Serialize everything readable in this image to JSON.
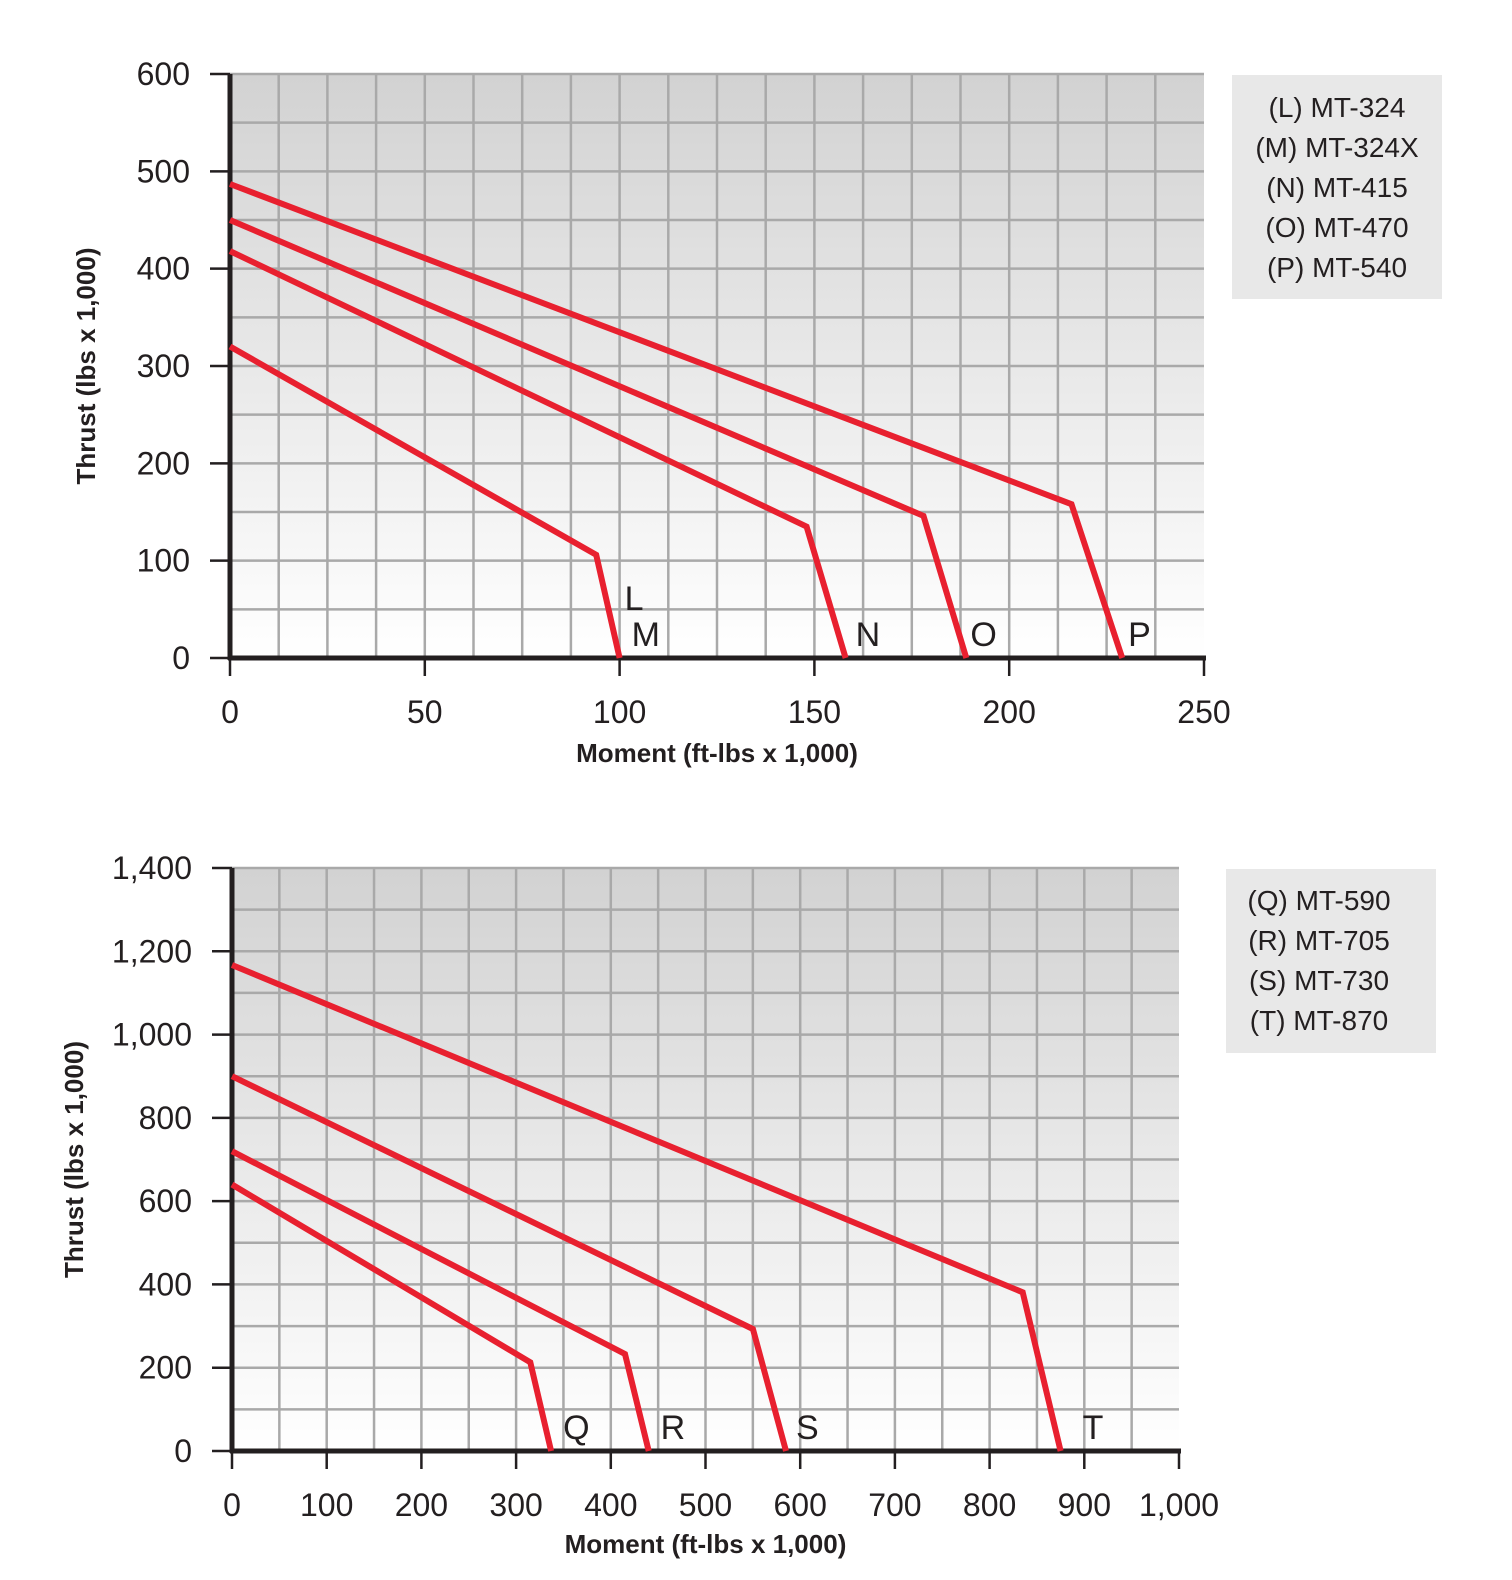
{
  "colors": {
    "line": "#e8202f",
    "axis": "#231f20",
    "grid": "#a9a9a9",
    "legend_bg": "#e8e8e8",
    "plot_top": "#d2d2d2",
    "plot_bottom": "#ffffff"
  },
  "chart_data": [
    {
      "type": "line",
      "xlabel": "Moment (ft-lbs x 1,000)",
      "ylabel": "Thrust (lbs x 1,000)",
      "xlim": [
        0,
        250
      ],
      "ylim": [
        0,
        600
      ],
      "x_ticks": [
        0,
        50,
        100,
        150,
        200,
        250
      ],
      "x_tick_labels": [
        "0",
        "50",
        "100",
        "150",
        "200",
        "250"
      ],
      "y_ticks": [
        0,
        100,
        200,
        300,
        400,
        500,
        600
      ],
      "y_tick_labels": [
        "0",
        "100",
        "200",
        "300",
        "400",
        "500",
        "600"
      ],
      "grid": true,
      "legend_position": "right",
      "legend": [
        "(L) MT-324",
        "(M) MT-324X",
        "(N) MT-415",
        "(O) MT-470",
        "(P) MT-540"
      ],
      "series": [
        {
          "name": "L M",
          "labels": [
            "L",
            "M"
          ],
          "points": [
            [
              0,
              320
            ],
            [
              94,
              106
            ],
            [
              100,
              0
            ]
          ]
        },
        {
          "name": "N",
          "labels": [
            "N"
          ],
          "points": [
            [
              0,
              418
            ],
            [
              148,
              135
            ],
            [
              158,
              0
            ]
          ]
        },
        {
          "name": "O",
          "labels": [
            "O"
          ],
          "points": [
            [
              0,
              450
            ],
            [
              178,
              146
            ],
            [
              189,
              0
            ]
          ]
        },
        {
          "name": "P",
          "labels": [
            "P"
          ],
          "points": [
            [
              0,
              487
            ],
            [
              216,
              158
            ],
            [
              229,
              0
            ]
          ]
        }
      ]
    },
    {
      "type": "line",
      "xlabel": "Moment (ft-lbs x 1,000)",
      "ylabel": "Thrust (lbs x 1,000)",
      "xlim": [
        0,
        1000
      ],
      "ylim": [
        0,
        1400
      ],
      "x_ticks": [
        0,
        100,
        200,
        300,
        400,
        500,
        600,
        700,
        800,
        900,
        1000
      ],
      "x_tick_labels": [
        "0",
        "100",
        "200",
        "300",
        "400",
        "500",
        "600",
        "700",
        "800",
        "900",
        "1,000"
      ],
      "y_ticks": [
        0,
        200,
        400,
        600,
        800,
        1000,
        1200,
        1400
      ],
      "y_tick_labels": [
        "0",
        "200",
        "400",
        "600",
        "800",
        "1,000",
        "1,200",
        "1,400"
      ],
      "grid": true,
      "legend_position": "right",
      "legend": [
        "(Q) MT-590",
        "(R) MT-705",
        "(S) MT-730",
        "(T) MT-870"
      ],
      "series": [
        {
          "name": "Q",
          "labels": [
            "Q"
          ],
          "points": [
            [
              0,
              640
            ],
            [
              315,
              213
            ],
            [
              337,
              0
            ]
          ]
        },
        {
          "name": "R",
          "labels": [
            "R"
          ],
          "points": [
            [
              0,
              720
            ],
            [
              415,
              233
            ],
            [
              440,
              0
            ]
          ]
        },
        {
          "name": "S",
          "labels": [
            "S"
          ],
          "points": [
            [
              0,
              900
            ],
            [
              550,
              293
            ],
            [
              585,
              0
            ]
          ]
        },
        {
          "name": "T",
          "labels": [
            "T"
          ],
          "points": [
            [
              0,
              1167
            ],
            [
              835,
              381
            ],
            [
              875,
              0
            ]
          ]
        }
      ]
    }
  ]
}
